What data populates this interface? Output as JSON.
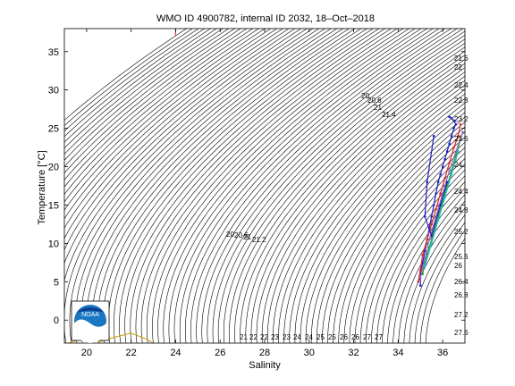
{
  "chart_data": {
    "type": "scatter",
    "title": "WMO ID 4900782, internal ID 2032, 18–Oct–2018",
    "xlabel": "Salinity",
    "ylabel": "Temperature [°C]",
    "xlim": [
      19,
      37
    ],
    "ylim": [
      -3,
      38
    ],
    "xticks": [
      20,
      22,
      24,
      26,
      28,
      30,
      32,
      34,
      36
    ],
    "yticks": [
      0,
      5,
      10,
      15,
      20,
      25,
      30,
      35
    ],
    "grid": false,
    "logo_text": "NOAA",
    "density_contours": {
      "description": "potential density anomaly isopycnals (sigma-t), 0.2 spacing",
      "labels_near_surface": [
        "21",
        "22",
        "22",
        "23",
        "23",
        "24",
        "24",
        "25",
        "25",
        "26",
        "26",
        "27",
        "27"
      ],
      "labels_mid": [
        "20",
        "20.6",
        "21",
        "21.2"
      ],
      "labels_upper": [
        "20",
        "20.6",
        "21",
        "21.4"
      ],
      "labels_right": [
        "21.6",
        "22",
        "22.4",
        "22.8",
        "23.2",
        "23.6",
        "24",
        "24.4",
        "24.8",
        "25.2",
        "25.6",
        "26",
        "26.4",
        "26.8",
        "27.2",
        "27.6"
      ]
    },
    "series": [
      {
        "values_sal": [
          35.0,
          35.0,
          35.1,
          35.2,
          35.3,
          35.4,
          35.5,
          35.6,
          35.7,
          35.8,
          35.9,
          36.0,
          36.1,
          36.2,
          36.3,
          36.4,
          36.5,
          36.6,
          36.5,
          36.4,
          36.3
        ],
        "values_temp": [
          4.5,
          6.0,
          7.5,
          9.0,
          10.5,
          12.0,
          13.5,
          15.0,
          16.5,
          18.0,
          19.0,
          20.0,
          21.0,
          22.0,
          23.0,
          24.0,
          25.0,
          25.5,
          26.0,
          26.3,
          26.5
        ],
        "color": "#1f1fbf"
      },
      {
        "values_sal": [
          34.9,
          35.0,
          35.1,
          35.3,
          35.5,
          35.7,
          35.9,
          36.1,
          36.3,
          36.5,
          36.7,
          36.8
        ],
        "values_temp": [
          5.0,
          6.5,
          8.5,
          10.5,
          12.5,
          14.5,
          16.5,
          18.5,
          20.5,
          22.5,
          24.0,
          25.5
        ],
        "color": "#d62728"
      },
      {
        "values_sal": [
          35.1,
          35.2,
          35.4,
          35.6,
          35.8,
          36.0,
          36.2,
          36.4,
          36.6,
          36.8
        ],
        "values_temp": [
          6.0,
          7.5,
          9.5,
          11.5,
          13.5,
          15.5,
          17.5,
          19.5,
          21.5,
          23.5
        ],
        "color": "#2ca02c"
      },
      {
        "values_sal": [
          35.0,
          35.2,
          35.4,
          35.7,
          36.0,
          36.3,
          36.6,
          36.9
        ],
        "values_temp": [
          5.5,
          8.0,
          10.5,
          13.5,
          16.5,
          19.5,
          22.0,
          24.5
        ],
        "color": "#9467bd"
      },
      {
        "values_sal": [
          35.2,
          35.5,
          35.8,
          36.1,
          36.4,
          36.7
        ],
        "values_temp": [
          7.0,
          10.0,
          13.0,
          16.0,
          19.0,
          22.0
        ],
        "color": "#17becf"
      },
      {
        "values_sal": [
          35.6,
          35.3,
          35.2,
          35.5,
          35.9,
          36.2
        ],
        "values_temp": [
          24.0,
          18.0,
          13.5,
          11.0,
          15.0,
          18.0
        ],
        "color": "#1f1fbf"
      }
    ],
    "other_traces": [
      {
        "color": "#d62728",
        "x": [
          24.0,
          24.0
        ],
        "y": [
          37.0,
          38.0
        ]
      },
      {
        "color": "#c8a000",
        "x": [
          19.2,
          19.8,
          20.6,
          21.3,
          22.0,
          22.7,
          23.0
        ],
        "y": [
          -3.0,
          -2.4,
          -2.8,
          -2.2,
          -1.7,
          -2.5,
          -3.0
        ]
      }
    ]
  }
}
